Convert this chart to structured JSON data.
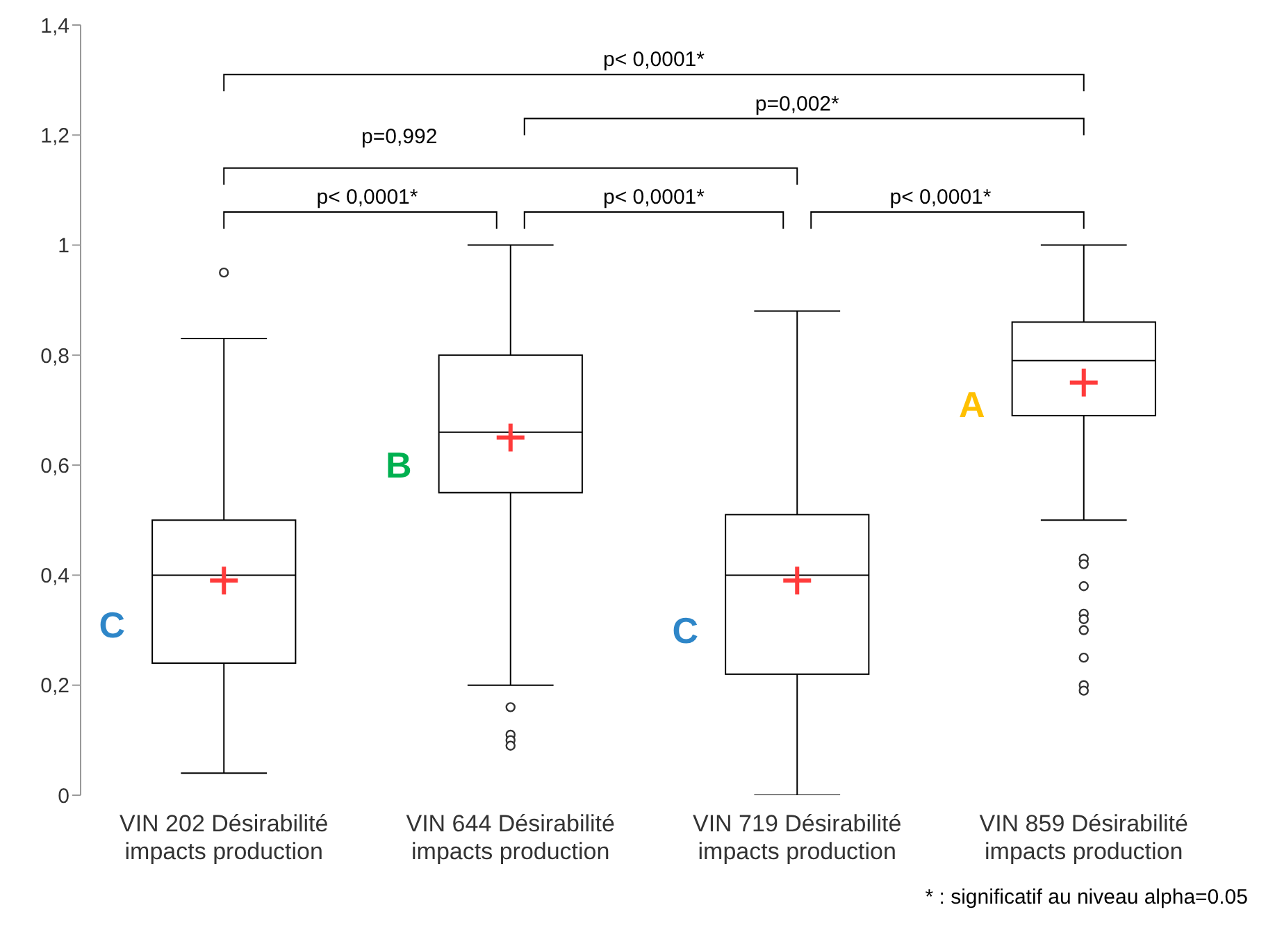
{
  "chart_data": {
    "type": "box",
    "color": "#000000",
    "categories": [
      "VIN 202 Désirabilité impacts production",
      "VIN 644 Désirabilité impacts production",
      "VIN 719 Désirabilité impacts production",
      "VIN 859 Désirabilité impacts production"
    ],
    "boxes": [
      {
        "low": 0.04,
        "q1": 0.24,
        "median": 0.4,
        "q3": 0.5,
        "high": 0.83,
        "mean": 0.39,
        "outliers": [
          0.95
        ]
      },
      {
        "low": 0.2,
        "q1": 0.55,
        "median": 0.66,
        "q3": 0.8,
        "high": 1.0,
        "mean": 0.65,
        "outliers": [
          0.16,
          0.11,
          0.1,
          0.09
        ]
      },
      {
        "low": 0.0,
        "q1": 0.22,
        "median": 0.4,
        "q3": 0.51,
        "high": 0.88,
        "mean": 0.39
      },
      {
        "low": 0.5,
        "q1": 0.69,
        "median": 0.79,
        "q3": 0.86,
        "high": 1.0,
        "mean": 0.75,
        "outliers": [
          0.43,
          0.42,
          0.38,
          0.33,
          0.32,
          0.3,
          0.25,
          0.2,
          0.19
        ]
      }
    ],
    "ylim": [
      0,
      1.4
    ],
    "yticks": [
      0,
      {
        "value": 0.2,
        "label": "0,2"
      },
      {
        "value": 0.4,
        "label": "0,4"
      },
      {
        "value": 0.6,
        "label": "0,6"
      },
      {
        "value": 0.8,
        "label": "0,8"
      },
      1,
      {
        "value": 1.2,
        "label": "1,2"
      },
      {
        "value": 1.4,
        "label": "1,4"
      }
    ],
    "annotations": [
      "p< 0,0001*",
      "p=0,002*",
      "p=0,992",
      "p< 0,0001*",
      "p< 0,0001*",
      "p< 0,0001*",
      "* : significatif au niveau alpha=0.05",
      "C",
      "B",
      "C",
      "A"
    ]
  }
}
